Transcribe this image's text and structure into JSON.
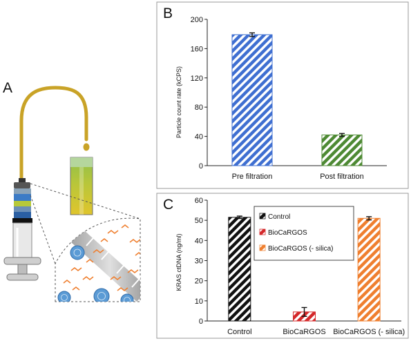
{
  "panels": {
    "a": {
      "letter": "A"
    },
    "b": {
      "letter": "B"
    },
    "c": {
      "letter": "C"
    }
  },
  "colors": {
    "blue": "#3f6fd1",
    "green": "#4e8a34",
    "black": "#111111",
    "red": "#d4282a",
    "orange": "#ef7f2f"
  },
  "chart_data": [
    {
      "id": "B",
      "type": "bar",
      "title": "",
      "xlabel": "",
      "ylabel": "Particle count rate (kCPS)",
      "ylim": [
        0,
        200
      ],
      "yticks": [
        0,
        40,
        80,
        120,
        160,
        200
      ],
      "categories": [
        "Pre filtration",
        "Post filtration"
      ],
      "values": [
        179,
        42
      ],
      "errors": [
        2.5,
        2
      ],
      "bar_colors": [
        "#3f6fd1",
        "#4e8a34"
      ],
      "pattern": "diagonal-stripes",
      "grid": false,
      "legend": []
    },
    {
      "id": "C",
      "type": "bar",
      "title": "",
      "xlabel": "",
      "ylabel": "KRAS ctDNA (ng/ml)",
      "ylim": [
        0,
        60
      ],
      "yticks": [
        0,
        10,
        20,
        30,
        40,
        50,
        60
      ],
      "categories": [
        "Control",
        "BioCaRGOS",
        "BioCaRGOS  (- silica)"
      ],
      "values": [
        51.5,
        4.5,
        51
      ],
      "errors": [
        0.6,
        2.2,
        0.8
      ],
      "bar_colors": [
        "#111111",
        "#d4282a",
        "#ef7f2f"
      ],
      "pattern": "diagonal-stripes",
      "grid": false,
      "legend_position": "top-center",
      "legend": [
        "Control",
        "BioCaRGOS",
        "BioCaRGOS  (- silica)"
      ]
    }
  ]
}
